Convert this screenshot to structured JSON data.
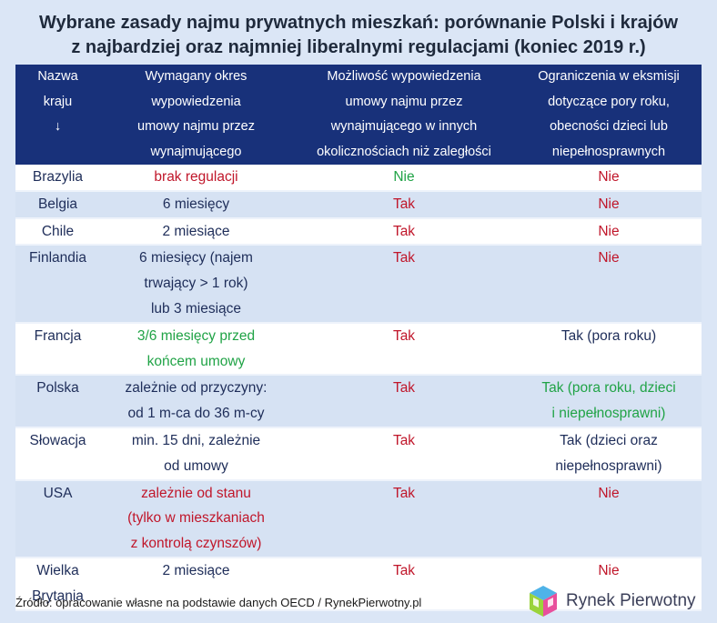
{
  "title": {
    "line1": "Wybrane zasady najmu prywatnych mieszkań: porównanie Polski i krajów",
    "line2": "z najbardziej oraz najmniej liberalnymi regulacjami (koniec 2019 r.)"
  },
  "headers": {
    "country": [
      "Nazwa",
      "kraju",
      "↓"
    ],
    "notice": [
      "Wymagany okres",
      "wypowiedzenia",
      "umowy najmu przez",
      "wynajmującego"
    ],
    "termination": [
      "Możliwość wypowiedzenia",
      "umowy najmu przez",
      "wynajmującego w innych",
      "okolicznościach niż zaległości"
    ],
    "eviction": [
      "Ograniczenia w eksmisji",
      "dotyczące pory roku,",
      "obecności dzieci lub",
      "niepełnosprawnych"
    ]
  },
  "rows": [
    {
      "country": [
        "Brazylia"
      ],
      "notice": [
        "brak regulacji"
      ],
      "notice_color": "red",
      "termination": "Nie",
      "termination_color": "green",
      "eviction": [
        "Nie"
      ],
      "eviction_color": "red"
    },
    {
      "country": [
        "Belgia"
      ],
      "notice": [
        "6 miesięcy"
      ],
      "notice_color": "navy",
      "termination": "Tak",
      "termination_color": "red",
      "eviction": [
        "Nie"
      ],
      "eviction_color": "red"
    },
    {
      "country": [
        "Chile"
      ],
      "notice": [
        "2 miesiące"
      ],
      "notice_color": "navy",
      "termination": "Tak",
      "termination_color": "red",
      "eviction": [
        "Nie"
      ],
      "eviction_color": "red"
    },
    {
      "country": [
        "Finlandia"
      ],
      "notice": [
        "6 miesięcy (najem",
        "trwający > 1 rok)",
        "lub 3 miesiące"
      ],
      "notice_color": "navy",
      "termination": "Tak",
      "termination_color": "red",
      "eviction": [
        "Nie"
      ],
      "eviction_color": "red"
    },
    {
      "country": [
        "Francja"
      ],
      "notice": [
        "3/6 miesięcy przed",
        "końcem umowy"
      ],
      "notice_color": "green",
      "termination": "Tak",
      "termination_color": "red",
      "eviction": [
        "Tak (pora roku)"
      ],
      "eviction_color": "navy"
    },
    {
      "country": [
        "Polska"
      ],
      "notice": [
        "zależnie od przyczyny:",
        "od 1 m-ca do 36 m-cy"
      ],
      "notice_color": "navy",
      "termination": "Tak",
      "termination_color": "red",
      "eviction": [
        "Tak (pora roku, dzieci",
        "i niepełnosprawni)"
      ],
      "eviction_color": "green"
    },
    {
      "country": [
        "Słowacja"
      ],
      "notice": [
        "min. 15 dni, zależnie",
        "od umowy"
      ],
      "notice_color": "navy",
      "termination": "Tak",
      "termination_color": "red",
      "eviction": [
        "Tak (dzieci oraz",
        "niepełnosprawni)"
      ],
      "eviction_color": "navy"
    },
    {
      "country": [
        "USA"
      ],
      "notice": [
        "zależnie od stanu",
        "(tylko w mieszkaniach",
        "z kontrolą czynszów)"
      ],
      "notice_color": "red",
      "termination": "Tak",
      "termination_color": "red",
      "eviction": [
        "Nie"
      ],
      "eviction_color": "red"
    },
    {
      "country": [
        "Wielka",
        "Brytania"
      ],
      "notice": [
        "2 miesiące"
      ],
      "notice_color": "navy",
      "termination": "Tak",
      "termination_color": "red",
      "eviction": [
        "Nie"
      ],
      "eviction_color": "red"
    }
  ],
  "footer": "Źródło: opracowanie własne na podstawie danych OECD / RynekPierwotny.pl",
  "logo_text": "Rynek Pierwotny",
  "colors": {
    "header_bg": "#18317a",
    "red": "#c0162a",
    "green": "#20a346",
    "navy": "#1e2d59",
    "row_alt": "#d6e2f3",
    "page_bg": "#dbe6f6"
  }
}
